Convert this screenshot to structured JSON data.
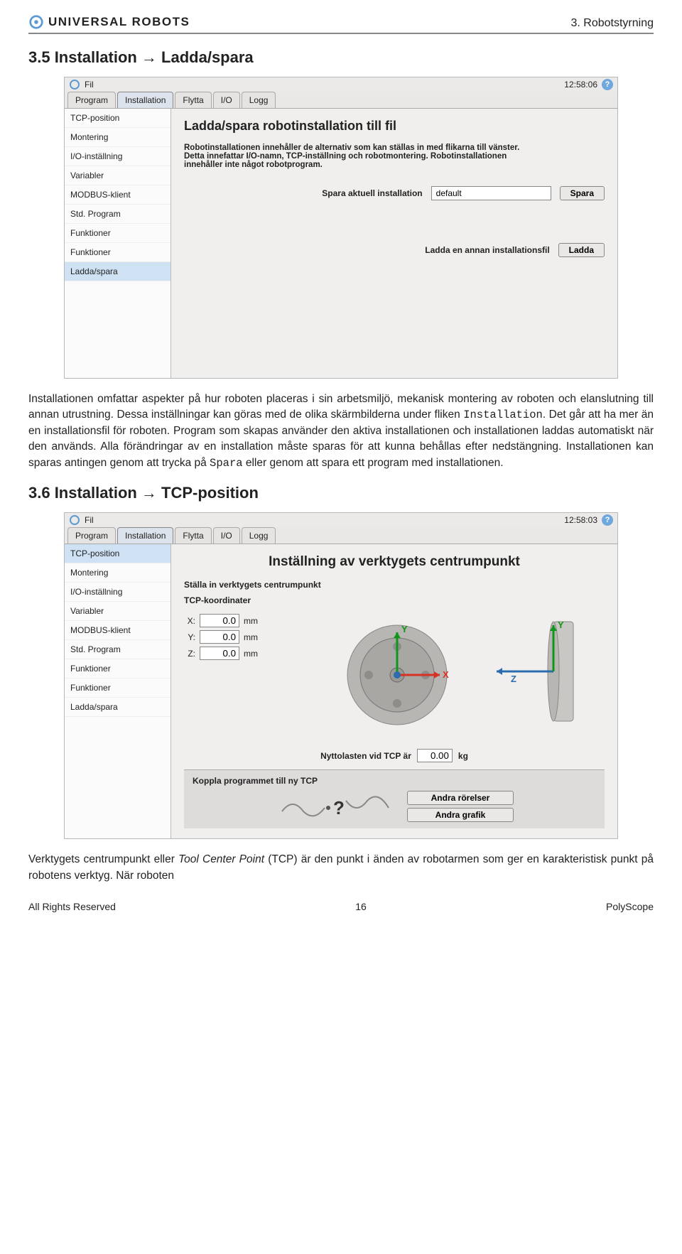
{
  "header": {
    "logo_text": "UNIVERSAL ROBOTS",
    "chapter": "3. Robotstyrning"
  },
  "section35": {
    "heading": "3.5  Installation → Ladda/spara"
  },
  "shot1": {
    "top_menu": "Fil",
    "time": "12:58:06",
    "tabs": [
      "Program",
      "Installation",
      "Flytta",
      "I/O",
      "Logg"
    ],
    "active_tab": 1,
    "sidebar": [
      "TCP-position",
      "Montering",
      "I/O-inställning",
      "Variabler",
      "MODBUS-klient",
      "Std. Program",
      "Funktioner",
      "Funktioner",
      "Ladda/spara"
    ],
    "sidebar_active": 8,
    "title": "Ladda/spara robotinstallation till fil",
    "desc1": "Robotinstallationen innehåller de alternativ som kan ställas in med flikarna till vänster. Detta innefattar I/O-namn, TCP-inställning och robotmontering. Robotinstallationen innehåller inte något robotprogram.",
    "save_label": "Spara aktuell installation",
    "save_value": "default",
    "save_btn": "Spara",
    "load_label": "Ladda en annan installationsfil",
    "load_btn": "Ladda"
  },
  "para1": "Installationen omfattar aspekter på hur roboten placeras i sin arbetsmiljö, mekanisk montering av roboten och elanslutning till annan utrustning. Dessa inställningar kan göras med de olika skärmbilderna under fliken ",
  "para1_mono": "Installation",
  "para1b": ". Det går att ha mer än en installationsfil för roboten. Program som skapas använder den aktiva installationen och installationen laddas automatiskt när den används. Alla förändringar av en installation måste sparas för att kunna behållas efter nedstängning. Installationen kan sparas antingen genom att trycka på ",
  "para1_mono2": "Spara",
  "para1c": " eller genom att spara ett program med installationen.",
  "section36": {
    "heading": "3.6  Installation → TCP-position"
  },
  "shot2": {
    "top_menu": "Fil",
    "time": "12:58:03",
    "tabs": [
      "Program",
      "Installation",
      "Flytta",
      "I/O",
      "Logg"
    ],
    "active_tab": 1,
    "sidebar": [
      "TCP-position",
      "Montering",
      "I/O-inställning",
      "Variabler",
      "MODBUS-klient",
      "Std. Program",
      "Funktioner",
      "Funktioner",
      "Ladda/spara"
    ],
    "sidebar_active": 0,
    "title": "Inställning av verktygets centrumpunkt",
    "sub1": "Ställa in verktygets centrumpunkt",
    "sub2": "TCP-koordinater",
    "coords": {
      "X": "0.0",
      "Y": "0.0",
      "Z": "0.0",
      "unit": "mm"
    },
    "payload_label": "Nyttolasten vid TCP är",
    "payload_value": "0.00",
    "payload_unit": "kg",
    "couple_title": "Koppla programmet till ny TCP",
    "btn_other_moves": "Andra rörelser",
    "btn_other_gfx": "Andra grafik"
  },
  "para2": "Verktygets centrumpunkt eller ",
  "para2_em": "Tool Center Point",
  "para2b": " (TCP) är den punkt i änden av robotarmen som ger en karakteristisk punkt på robotens verktyg. När roboten",
  "footer": {
    "left": "All Rights Reserved",
    "page": "16",
    "right": "PolyScope"
  }
}
